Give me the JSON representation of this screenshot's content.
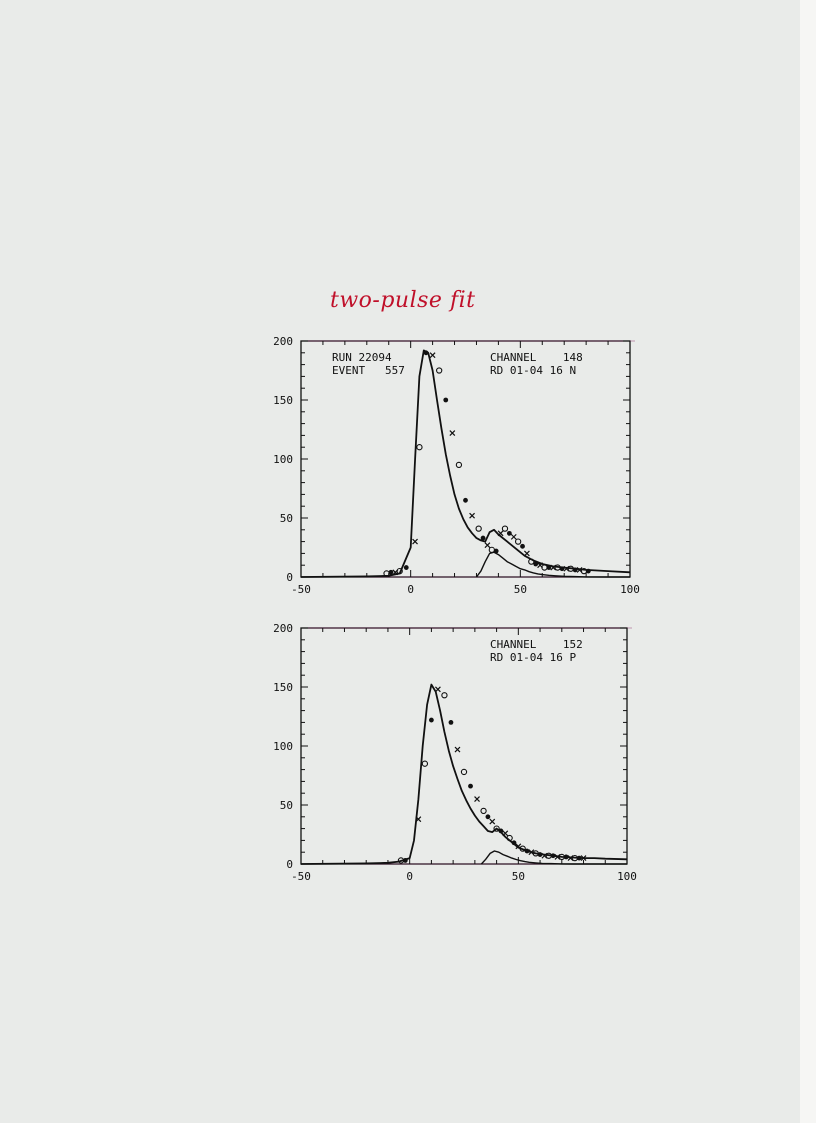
{
  "annotation": "two-pulse fit",
  "chart_data": [
    {
      "type": "line",
      "title": "",
      "xlabel": "",
      "ylabel": "",
      "xlim": [
        -50,
        100
      ],
      "ylim": [
        0,
        200
      ],
      "xticks": [
        "-50",
        "0",
        "50",
        "100"
      ],
      "yticks": [
        "0",
        "50",
        "100",
        "150",
        "200"
      ],
      "info_left": [
        "RUN 22094",
        "EVENT   557"
      ],
      "info_right": [
        "CHANNEL    148",
        "RD 01-04 16 N"
      ],
      "series": [
        {
          "style": "markers",
          "x": [
            -11,
            -9,
            -7,
            -5,
            -2,
            2,
            4,
            7,
            10,
            13,
            16,
            19,
            22,
            25,
            28,
            31,
            33,
            35,
            37,
            39,
            41,
            43,
            45,
            47,
            49,
            51,
            53,
            55,
            57,
            59,
            61,
            63,
            65,
            67,
            69,
            71,
            73,
            75,
            77,
            79,
            81
          ],
          "y": [
            3,
            4,
            4,
            5,
            8,
            30,
            110,
            190,
            188,
            175,
            150,
            122,
            95,
            65,
            52,
            41,
            33,
            27,
            23,
            22,
            37,
            41,
            37,
            34,
            30,
            26,
            20,
            13,
            11,
            10,
            8,
            8,
            8,
            8,
            7,
            7,
            7,
            6,
            6,
            5,
            5
          ]
        },
        {
          "style": "line",
          "x": [
            -50,
            -20,
            -10,
            -5,
            0,
            2,
            4,
            6,
            8,
            10,
            12,
            14,
            16,
            18,
            20,
            22,
            24,
            26,
            28,
            30,
            32,
            34,
            36,
            38,
            40,
            44,
            48,
            52,
            56,
            60,
            65,
            70,
            75,
            80,
            85,
            90,
            100
          ],
          "y": [
            0,
            0.5,
            1,
            3,
            25,
            100,
            170,
            192,
            190,
            175,
            150,
            126,
            104,
            86,
            70,
            58,
            49,
            42,
            37,
            33,
            31,
            30,
            38,
            40,
            36,
            30,
            24,
            18,
            14,
            11,
            9,
            8,
            7,
            6,
            5.5,
            5,
            4
          ]
        },
        {
          "style": "line",
          "x": [
            30,
            32,
            34,
            36,
            38,
            40,
            42,
            44,
            46,
            48,
            50,
            52,
            54,
            56,
            58,
            60,
            63,
            66,
            70,
            75,
            80,
            90,
            100
          ],
          "y": [
            0,
            5,
            13,
            20,
            21,
            19,
            16,
            13,
            11,
            9,
            7,
            6,
            4.5,
            3.5,
            2.6,
            2,
            1.4,
            1,
            0.6,
            0.3,
            0.1,
            0,
            0
          ]
        }
      ]
    },
    {
      "type": "line",
      "title": "",
      "xlabel": "",
      "ylabel": "",
      "xlim": [
        -50,
        100
      ],
      "ylim": [
        0,
        200
      ],
      "xticks": [
        "-50",
        "0",
        "50",
        "100"
      ],
      "yticks": [
        "0",
        "50",
        "100",
        "150",
        "200"
      ],
      "info_left": [],
      "info_right": [
        "CHANNEL    152",
        "RD 01-04 16 P"
      ],
      "series": [
        {
          "style": "markers",
          "x": [
            -4,
            -2,
            4,
            7,
            10,
            13,
            16,
            19,
            22,
            25,
            28,
            31,
            34,
            36,
            38,
            40,
            42,
            44,
            46,
            48,
            50,
            52,
            54,
            56,
            58,
            60,
            62,
            64,
            66,
            68,
            70,
            72,
            74,
            76,
            78,
            80
          ],
          "y": [
            3,
            3,
            38,
            85,
            122,
            148,
            143,
            120,
            97,
            78,
            66,
            55,
            45,
            40,
            36,
            30,
            28,
            26,
            22,
            18,
            15,
            13,
            11,
            10,
            9,
            8,
            7,
            7,
            7,
            6,
            6,
            6,
            5,
            5,
            5,
            5
          ]
        },
        {
          "style": "line",
          "x": [
            -50,
            -20,
            -10,
            -5,
            0,
            2,
            4,
            6,
            8,
            10,
            12,
            14,
            16,
            18,
            20,
            22,
            24,
            26,
            28,
            30,
            32,
            34,
            36,
            38,
            40,
            42,
            44,
            46,
            48,
            50,
            54,
            58,
            62,
            66,
            70,
            75,
            80,
            85,
            90,
            100
          ],
          "y": [
            0,
            0.5,
            1,
            2,
            5,
            20,
            55,
            100,
            135,
            152,
            146,
            130,
            112,
            96,
            83,
            72,
            62,
            54,
            47,
            41,
            36,
            32,
            28,
            27,
            30,
            27,
            23,
            20,
            17,
            14,
            11,
            9,
            8,
            7,
            6,
            5.5,
            5,
            5,
            4.5,
            4
          ]
        },
        {
          "style": "line",
          "x": [
            33,
            35,
            37,
            39,
            41,
            43,
            45,
            47,
            49,
            51,
            53,
            55,
            58,
            61,
            65,
            70,
            75,
            80,
            90,
            100
          ],
          "y": [
            0,
            4,
            9,
            11,
            10,
            8,
            6.5,
            5,
            3.8,
            2.8,
            2,
            1.4,
            0.9,
            0.5,
            0.3,
            0.1,
            0,
            0,
            0,
            0
          ]
        }
      ]
    }
  ]
}
